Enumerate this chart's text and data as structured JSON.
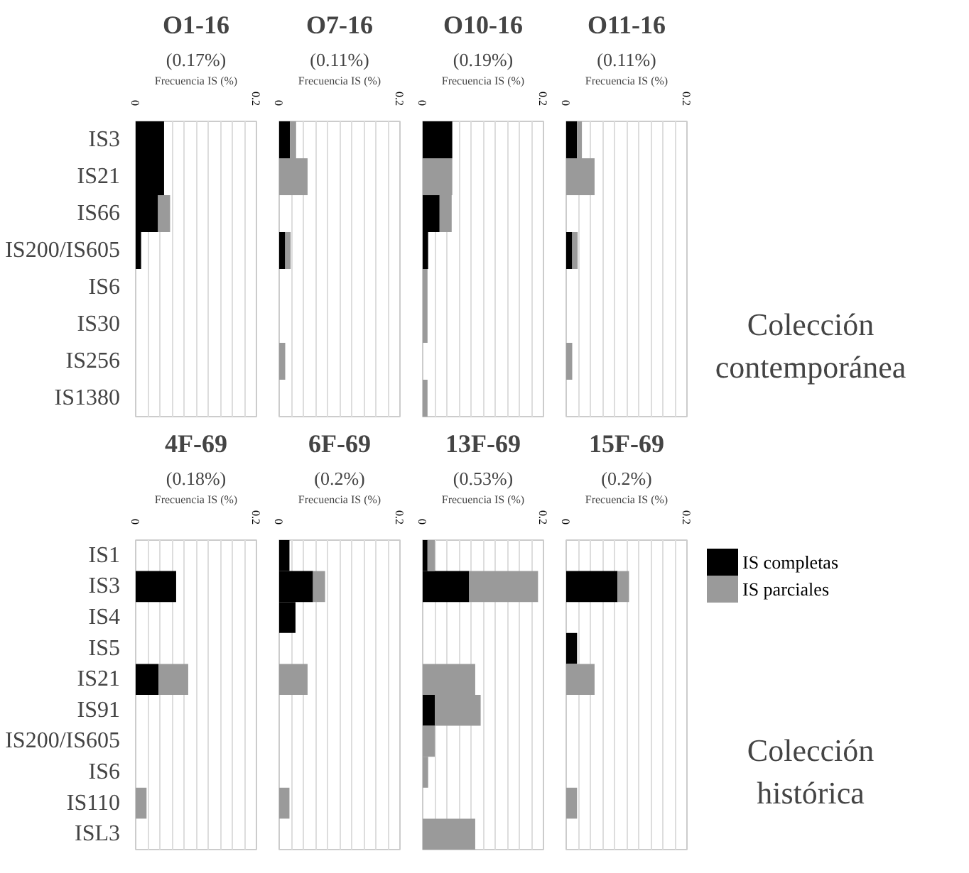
{
  "chart_data": [
    {
      "type": "bar",
      "orientation": "horizontal",
      "stacked": true,
      "title": "O1-16",
      "subtitle": "(0.17%)",
      "xlabel": "Frecuencia IS (%)",
      "categories": [
        "IS3",
        "IS21",
        "IS66",
        "IS200/IS605",
        "IS6",
        "IS30",
        "IS256",
        "IS1380"
      ],
      "xlim": [
        0,
        0.2
      ],
      "xticks": [
        0,
        {
          "value": 0.02,
          "label": null
        },
        {
          "value": 0.04,
          "label": null
        },
        {
          "value": 0.06,
          "label": null
        },
        {
          "value": 0.08,
          "label": null
        },
        {
          "value": 0.1,
          "label": null
        },
        {
          "value": 0.12,
          "label": null
        },
        {
          "value": 0.14,
          "label": null
        },
        {
          "value": 0.16,
          "label": null
        },
        {
          "value": 0.18,
          "label": null
        },
        0.2
      ],
      "grid": "x",
      "series": [
        {
          "color": "#000000",
          "values": [
            0.047,
            0.047,
            0.037,
            0.009,
            0,
            0,
            0,
            0
          ]
        },
        {
          "color": "#9a9a9a",
          "values": [
            0,
            0,
            0.02,
            0,
            0,
            0,
            0,
            0
          ]
        }
      ]
    },
    {
      "type": "bar",
      "orientation": "horizontal",
      "stacked": true,
      "title": "O7-16",
      "subtitle": "(0.11%)",
      "xlabel": "Frecuencia IS (%)",
      "categories": [
        null,
        null,
        null,
        null,
        null,
        null,
        null,
        null
      ],
      "xlim": [
        0,
        0.2
      ],
      "xticks": [
        0,
        {
          "value": 0.02,
          "label": null
        },
        {
          "value": 0.04,
          "label": null
        },
        {
          "value": 0.06,
          "label": null
        },
        {
          "value": 0.08,
          "label": null
        },
        {
          "value": 0.1,
          "label": null
        },
        {
          "value": 0.12,
          "label": null
        },
        {
          "value": 0.14,
          "label": null
        },
        {
          "value": 0.16,
          "label": null
        },
        {
          "value": 0.18,
          "label": null
        },
        0.2
      ],
      "grid": "x",
      "tick_labels": "x",
      "series": [
        {
          "color": "#000000",
          "values": [
            0.018,
            0,
            0,
            0.01,
            0,
            0,
            0,
            0
          ]
        },
        {
          "color": "#9a9a9a",
          "values": [
            0.01,
            0.047,
            0,
            0.009,
            0,
            0,
            0.01,
            0
          ]
        }
      ]
    },
    {
      "type": "bar",
      "orientation": "horizontal",
      "stacked": true,
      "title": "O10-16",
      "subtitle": "(0.19%)",
      "xlabel": "Frecuencia IS (%)",
      "categories": [
        null,
        null,
        null,
        null,
        null,
        null,
        null,
        null
      ],
      "xlim": [
        0,
        0.2
      ],
      "xticks": [
        0,
        {
          "value": 0.02,
          "label": null
        },
        {
          "value": 0.04,
          "label": null
        },
        {
          "value": 0.06,
          "label": null
        },
        {
          "value": 0.08,
          "label": null
        },
        {
          "value": 0.1,
          "label": null
        },
        {
          "value": 0.12,
          "label": null
        },
        {
          "value": 0.14,
          "label": null
        },
        {
          "value": 0.16,
          "label": null
        },
        {
          "value": 0.18,
          "label": null
        },
        0.2
      ],
      "grid": "x",
      "tick_labels": "x",
      "series": [
        {
          "color": "#000000",
          "values": [
            0.049,
            0,
            0.028,
            0.009,
            0,
            0,
            0,
            0
          ]
        },
        {
          "color": "#9a9a9a",
          "values": [
            0,
            0.049,
            0.02,
            0,
            0.008,
            0.008,
            0,
            0.008
          ]
        }
      ]
    },
    {
      "type": "bar",
      "orientation": "horizontal",
      "stacked": true,
      "title": "O11-16",
      "subtitle": "(0.11%)",
      "xlabel": "Frecuencia IS (%)",
      "categories": [
        null,
        null,
        null,
        null,
        null,
        null,
        null,
        null
      ],
      "xlim": [
        0,
        0.2
      ],
      "xticks": [
        0,
        {
          "value": 0.02,
          "label": null
        },
        {
          "value": 0.04,
          "label": null
        },
        {
          "value": 0.06,
          "label": null
        },
        {
          "value": 0.08,
          "label": null
        },
        {
          "value": 0.1,
          "label": null
        },
        {
          "value": 0.12,
          "label": null
        },
        {
          "value": 0.14,
          "label": null
        },
        {
          "value": 0.16,
          "label": null
        },
        {
          "value": 0.18,
          "label": null
        },
        0.2
      ],
      "grid": "x",
      "tick_labels": "x",
      "annotations": [
        "Colección contemporánea"
      ],
      "series": [
        {
          "color": "#000000",
          "values": [
            0.018,
            0,
            0,
            0.01,
            0,
            0,
            0,
            0
          ]
        },
        {
          "color": "#9a9a9a",
          "values": [
            0.008,
            0.047,
            0,
            0.009,
            0,
            0,
            0.01,
            0
          ]
        }
      ]
    },
    {
      "type": "bar",
      "orientation": "horizontal",
      "stacked": true,
      "title": "4F-69",
      "subtitle": "(0.18%)",
      "xlabel": "Frecuencia IS (%)",
      "categories": [
        "IS1",
        "IS3",
        "IS4",
        "IS5",
        "IS21",
        "IS91",
        "IS200/IS605",
        "IS6",
        "IS110",
        "ISL3"
      ],
      "xlim": [
        0,
        0.2
      ],
      "xticks": [
        0,
        {
          "value": 0.02,
          "label": null
        },
        {
          "value": 0.04,
          "label": null
        },
        {
          "value": 0.06,
          "label": null
        },
        {
          "value": 0.08,
          "label": null
        },
        {
          "value": 0.1,
          "label": null
        },
        {
          "value": 0.12,
          "label": null
        },
        {
          "value": 0.14,
          "label": null
        },
        {
          "value": 0.16,
          "label": null
        },
        {
          "value": 0.18,
          "label": null
        },
        0.2
      ],
      "grid": "x",
      "series": [
        {
          "color": "#000000",
          "values": [
            0,
            0.067,
            0,
            0,
            0.038,
            0,
            0,
            0,
            0,
            0
          ]
        },
        {
          "color": "#9a9a9a",
          "values": [
            0,
            0,
            0,
            0,
            0.049,
            0,
            0,
            0,
            0.018,
            0
          ]
        }
      ]
    },
    {
      "type": "bar",
      "orientation": "horizontal",
      "stacked": true,
      "title": "6F-69",
      "subtitle": "(0.2%)",
      "xlabel": "Frecuencia IS (%)",
      "categories": [
        null,
        null,
        null,
        null,
        null,
        null,
        null,
        null,
        null,
        null
      ],
      "xlim": [
        0,
        0.2
      ],
      "xticks": [
        0,
        {
          "value": 0.02,
          "label": null
        },
        {
          "value": 0.04,
          "label": null
        },
        {
          "value": 0.06,
          "label": null
        },
        {
          "value": 0.08,
          "label": null
        },
        {
          "value": 0.1,
          "label": null
        },
        {
          "value": 0.12,
          "label": null
        },
        {
          "value": 0.14,
          "label": null
        },
        {
          "value": 0.16,
          "label": null
        },
        {
          "value": 0.18,
          "label": null
        },
        0.2
      ],
      "grid": "x",
      "tick_labels": "x",
      "series": [
        {
          "color": "#000000",
          "values": [
            0.017,
            0.056,
            0.027,
            0,
            0,
            0,
            0,
            0,
            0,
            0
          ]
        },
        {
          "color": "#9a9a9a",
          "values": [
            0,
            0.02,
            0,
            0,
            0.047,
            0,
            0,
            0,
            0.017,
            0
          ]
        }
      ]
    },
    {
      "type": "bar",
      "orientation": "horizontal",
      "stacked": true,
      "title": "13F-69",
      "subtitle": "(0.53%)",
      "xlabel": "Frecuencia IS (%)",
      "categories": [
        null,
        null,
        null,
        null,
        null,
        null,
        null,
        null,
        null,
        null
      ],
      "xlim": [
        0,
        0.2
      ],
      "xticks": [
        0,
        {
          "value": 0.02,
          "label": null
        },
        {
          "value": 0.04,
          "label": null
        },
        {
          "value": 0.06,
          "label": null
        },
        {
          "value": 0.08,
          "label": null
        },
        {
          "value": 0.1,
          "label": null
        },
        {
          "value": 0.12,
          "label": null
        },
        {
          "value": 0.14,
          "label": null
        },
        {
          "value": 0.16,
          "label": null
        },
        {
          "value": 0.18,
          "label": null
        },
        0.2
      ],
      "grid": "x",
      "tick_labels": "x",
      "series": [
        {
          "color": "#000000",
          "values": [
            0.008,
            0.077,
            0,
            0,
            0,
            0.02,
            0,
            0,
            0,
            0
          ]
        },
        {
          "color": "#9a9a9a",
          "values": [
            0.012,
            0.114,
            0,
            0,
            0.087,
            0.076,
            0.02,
            0.009,
            0,
            0.087
          ]
        }
      ]
    },
    {
      "type": "bar",
      "orientation": "horizontal",
      "stacked": true,
      "title": "15F-69",
      "subtitle": "(0.2%)",
      "xlabel": "Frecuencia IS (%)",
      "categories": [
        null,
        null,
        null,
        null,
        null,
        null,
        null,
        null,
        null,
        null
      ],
      "xlim": [
        0,
        0.2
      ],
      "xticks": [
        0,
        {
          "value": 0.02,
          "label": null
        },
        {
          "value": 0.04,
          "label": null
        },
        {
          "value": 0.06,
          "label": null
        },
        {
          "value": 0.08,
          "label": null
        },
        {
          "value": 0.1,
          "label": null
        },
        {
          "value": 0.12,
          "label": null
        },
        {
          "value": 0.14,
          "label": null
        },
        {
          "value": 0.16,
          "label": null
        },
        {
          "value": 0.18,
          "label": null
        },
        0.2
      ],
      "grid": "x",
      "tick_labels": "x",
      "legend": "right",
      "annotations": [
        "Colección histórica"
      ],
      "series": [
        {
          "name": "IS completas",
          "color": "#000000",
          "values": [
            0,
            0.085,
            0,
            0.018,
            0,
            0,
            0,
            0,
            0,
            0
          ]
        },
        {
          "name": "IS parciales",
          "color": "#9a9a9a",
          "values": [
            0,
            0.019,
            0,
            0,
            0.047,
            0,
            0,
            0,
            0.018,
            0
          ]
        }
      ]
    }
  ]
}
